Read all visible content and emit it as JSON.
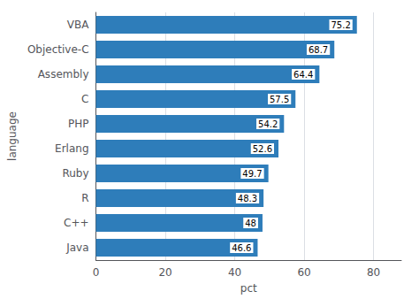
{
  "chart_data": {
    "type": "bar",
    "orientation": "horizontal",
    "categories": [
      "VBA",
      "Objective-C",
      "Assembly",
      "C",
      "PHP",
      "Erlang",
      "Ruby",
      "R",
      "C++",
      "Java"
    ],
    "values": [
      75.2,
      68.7,
      64.4,
      57.5,
      54.2,
      52.6,
      49.7,
      48.3,
      48,
      46.6
    ],
    "color": "#2e7dba",
    "xlabel": "pct",
    "ylabel": "language",
    "xlim": [
      0,
      88
    ],
    "xticks": [
      0,
      20,
      40,
      60,
      80
    ],
    "grid": true,
    "data_labels": true
  }
}
